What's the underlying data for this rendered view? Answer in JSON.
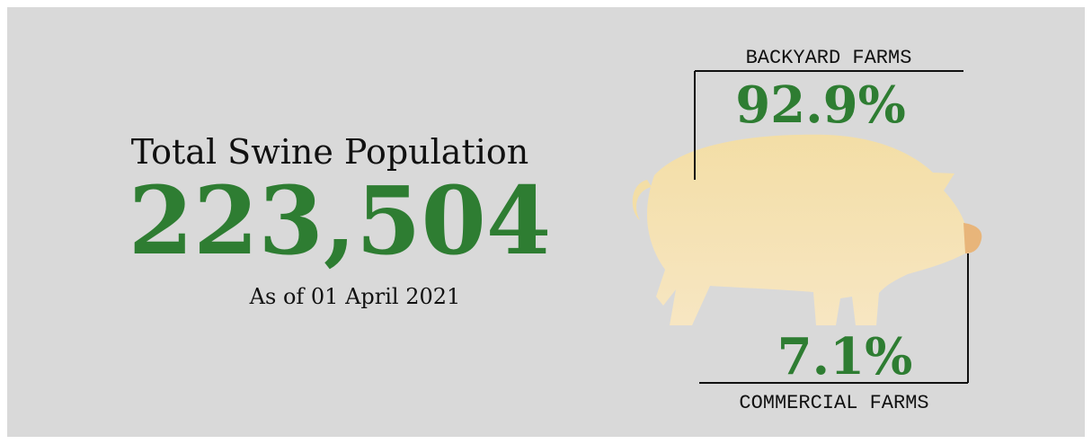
{
  "infographic": {
    "title": "Total Swine Population",
    "total": "223,504",
    "date": "As of 01 April 2021",
    "segments": [
      {
        "label": "BACKYARD FARMS",
        "share": "92.9%"
      },
      {
        "label": "COMMERCIAL FARMS",
        "share": "7.1%"
      }
    ]
  }
}
